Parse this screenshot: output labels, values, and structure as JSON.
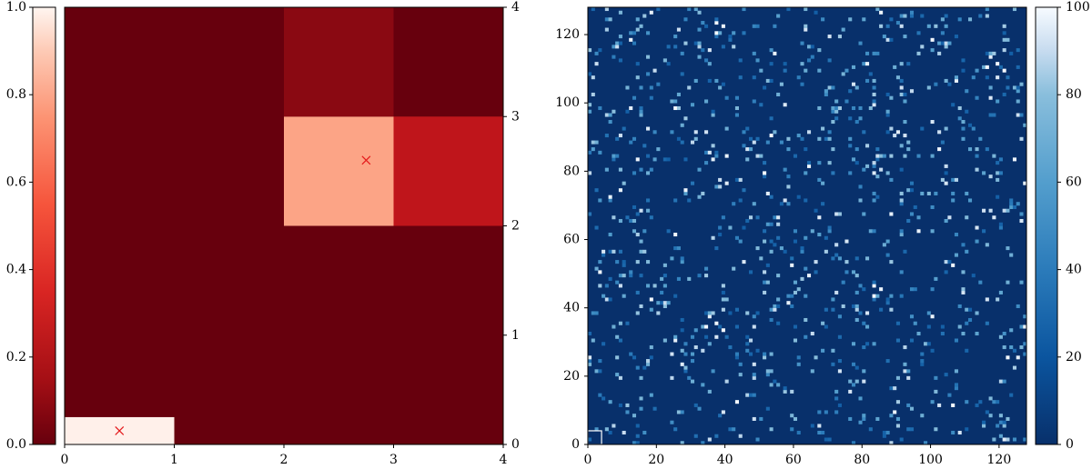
{
  "chart_data": [
    {
      "type": "heatmap",
      "title": "",
      "xlabel": "",
      "ylabel": "",
      "xlim": [
        0,
        4
      ],
      "ylim": [
        0,
        4
      ],
      "x_ticks": [
        "0",
        "1",
        "2",
        "3",
        "4"
      ],
      "y_ticks": [
        "0",
        "1",
        "2",
        "3",
        "4"
      ],
      "colormap": "Reds_r",
      "colorbar": {
        "position": "left",
        "range": [
          0,
          1
        ],
        "ticks": [
          "0.0",
          "0.2",
          "0.4",
          "0.6",
          "0.8",
          "1.0"
        ]
      },
      "cells": [
        {
          "x0": 0,
          "x1": 1,
          "y0": 0,
          "y1": 0.25,
          "value": 1.0,
          "color": "#fff0ea"
        },
        {
          "x0": 2,
          "x1": 3,
          "y0": 2,
          "y1": 3,
          "value": 0.68,
          "color": "#fca486"
        },
        {
          "x0": 3,
          "x1": 4,
          "y0": 2,
          "y1": 3,
          "value": 0.12,
          "color": "#bf151b"
        },
        {
          "x0": 2,
          "x1": 3,
          "y0": 3,
          "y1": 4,
          "value": 0.06,
          "color": "#8a0912"
        }
      ],
      "background": {
        "value": 0.0,
        "color": "#67000d"
      },
      "markers": [
        {
          "x": 0.5,
          "y": 0.125,
          "symbol": "x",
          "color": "#e41a1c"
        },
        {
          "x": 2.75,
          "y": 2.6,
          "symbol": "x",
          "color": "#e41a1c"
        }
      ]
    },
    {
      "type": "heatmap",
      "title": "",
      "xlabel": "",
      "ylabel": "",
      "xlim": [
        0,
        128
      ],
      "ylim": [
        0,
        128
      ],
      "x_ticks": [
        "0",
        "20",
        "40",
        "60",
        "80",
        "100",
        "120"
      ],
      "y_ticks": [
        "0",
        "20",
        "40",
        "60",
        "80",
        "100",
        "120"
      ],
      "colormap": "Blues_r",
      "colorbar": {
        "position": "right",
        "range": [
          0,
          100
        ],
        "ticks": [
          "0",
          "20",
          "40",
          "60",
          "80",
          "100"
        ]
      },
      "grid_size": 128,
      "background_color": "#08306b",
      "sparse_fraction": 0.06,
      "seed": 7,
      "annotation_box": {
        "x0": 0,
        "x1": 4,
        "y0": 0,
        "y1": 4,
        "color": "#ffffff"
      }
    }
  ]
}
